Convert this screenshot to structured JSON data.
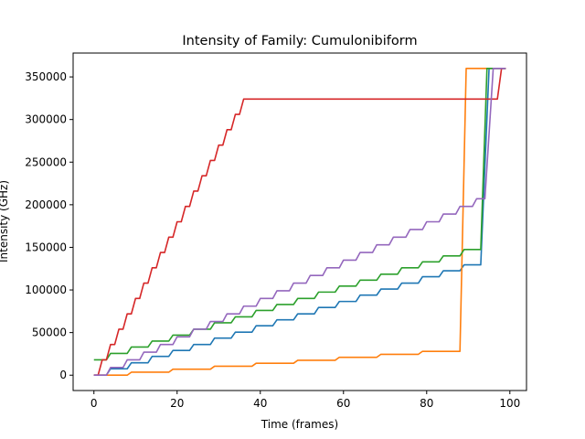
{
  "chart_data": {
    "type": "line",
    "title": "Intensity of Family: Cumulonibiform",
    "xlabel": "Time (frames)",
    "ylabel": "Intensity (GHz)",
    "xlim": [
      -5,
      104
    ],
    "ylim": [
      -18000,
      378000
    ],
    "xticks": [
      0,
      20,
      40,
      60,
      80,
      100
    ],
    "yticks": [
      0,
      50000,
      100000,
      150000,
      200000,
      250000,
      300000,
      350000
    ],
    "grid": false,
    "legend": "none",
    "series": [
      {
        "color": "#1f77b4",
        "points": [
          [
            0,
            0
          ],
          [
            3,
            0
          ],
          [
            4,
            7500
          ],
          [
            8,
            7500
          ],
          [
            9,
            14500
          ],
          [
            13,
            14500
          ],
          [
            14,
            22000
          ],
          [
            18,
            22000
          ],
          [
            19,
            29000
          ],
          [
            23,
            29000
          ],
          [
            24,
            36000
          ],
          [
            28,
            36000
          ],
          [
            29,
            43500
          ],
          [
            33,
            43500
          ],
          [
            34,
            50500
          ],
          [
            38,
            50500
          ],
          [
            39,
            58000
          ],
          [
            43,
            58000
          ],
          [
            44,
            65000
          ],
          [
            48,
            65000
          ],
          [
            49,
            72000
          ],
          [
            53,
            72000
          ],
          [
            54,
            79500
          ],
          [
            58,
            79500
          ],
          [
            59,
            86500
          ],
          [
            63,
            86500
          ],
          [
            64,
            94000
          ],
          [
            68,
            94000
          ],
          [
            69,
            101000
          ],
          [
            73,
            101000
          ],
          [
            74,
            108000
          ],
          [
            78,
            108000
          ],
          [
            79,
            115500
          ],
          [
            83,
            115500
          ],
          [
            84,
            122500
          ],
          [
            88,
            122500
          ],
          [
            89,
            129500
          ],
          [
            93,
            129500
          ],
          [
            95,
            360000
          ],
          [
            99,
            360000
          ]
        ]
      },
      {
        "color": "#ff7f0e",
        "points": [
          [
            0,
            0
          ],
          [
            8,
            0
          ],
          [
            9,
            3500
          ],
          [
            18,
            3500
          ],
          [
            19,
            7000
          ],
          [
            28,
            7000
          ],
          [
            29,
            10500
          ],
          [
            38,
            10500
          ],
          [
            39,
            14000
          ],
          [
            48,
            14000
          ],
          [
            49,
            17500
          ],
          [
            58,
            17500
          ],
          [
            59,
            21000
          ],
          [
            68,
            21000
          ],
          [
            69,
            24500
          ],
          [
            78,
            24500
          ],
          [
            79,
            28000
          ],
          [
            88,
            28000
          ],
          [
            89.5,
            360000
          ],
          [
            99,
            360000
          ]
        ]
      },
      {
        "color": "#2ca02c",
        "points": [
          [
            0,
            18000
          ],
          [
            3,
            18000
          ],
          [
            4,
            25500
          ],
          [
            8,
            25500
          ],
          [
            9,
            33000
          ],
          [
            13,
            33000
          ],
          [
            14,
            40000
          ],
          [
            18,
            40000
          ],
          [
            19,
            47000
          ],
          [
            23,
            47000
          ],
          [
            24,
            54000
          ],
          [
            28,
            54000
          ],
          [
            29,
            61500
          ],
          [
            33,
            61500
          ],
          [
            34,
            68500
          ],
          [
            38,
            68500
          ],
          [
            39,
            76000
          ],
          [
            43,
            76000
          ],
          [
            44,
            83000
          ],
          [
            48,
            83000
          ],
          [
            49,
            90000
          ],
          [
            53,
            90000
          ],
          [
            54,
            97500
          ],
          [
            58,
            97500
          ],
          [
            59,
            104500
          ],
          [
            63,
            104500
          ],
          [
            64,
            111500
          ],
          [
            68,
            111500
          ],
          [
            69,
            118500
          ],
          [
            73,
            118500
          ],
          [
            74,
            126000
          ],
          [
            78,
            126000
          ],
          [
            79,
            133000
          ],
          [
            83,
            133000
          ],
          [
            84,
            140000
          ],
          [
            88,
            140000
          ],
          [
            89,
            147500
          ],
          [
            93,
            147500
          ],
          [
            94.5,
            360000
          ],
          [
            99,
            360000
          ]
        ]
      },
      {
        "color": "#d62728",
        "points": [
          [
            0,
            0
          ],
          [
            1,
            0
          ],
          [
            2,
            18000
          ],
          [
            3,
            18000
          ],
          [
            4,
            36000
          ],
          [
            5,
            36000
          ],
          [
            6,
            54000
          ],
          [
            7,
            54000
          ],
          [
            8,
            72000
          ],
          [
            9,
            72000
          ],
          [
            10,
            90000
          ],
          [
            11,
            90000
          ],
          [
            12,
            108000
          ],
          [
            13,
            108000
          ],
          [
            14,
            126000
          ],
          [
            15,
            126000
          ],
          [
            16,
            144000
          ],
          [
            17,
            144000
          ],
          [
            18,
            162000
          ],
          [
            19,
            162000
          ],
          [
            20,
            180000
          ],
          [
            21,
            180000
          ],
          [
            22,
            198000
          ],
          [
            23,
            198000
          ],
          [
            24,
            216000
          ],
          [
            25,
            216000
          ],
          [
            26,
            234000
          ],
          [
            27,
            234000
          ],
          [
            28,
            252000
          ],
          [
            29,
            252000
          ],
          [
            30,
            270000
          ],
          [
            31,
            270000
          ],
          [
            32,
            288000
          ],
          [
            33,
            288000
          ],
          [
            34,
            306000
          ],
          [
            35,
            306000
          ],
          [
            36,
            324000
          ],
          [
            97,
            324000
          ],
          [
            98,
            360000
          ],
          [
            99,
            360000
          ]
        ]
      },
      {
        "color": "#9467bd",
        "points": [
          [
            0,
            0
          ],
          [
            3,
            0
          ],
          [
            4,
            9000
          ],
          [
            7,
            9000
          ],
          [
            8,
            18000
          ],
          [
            11,
            18000
          ],
          [
            12,
            27000
          ],
          [
            15,
            27000
          ],
          [
            16,
            36000
          ],
          [
            19,
            36000
          ],
          [
            20,
            45000
          ],
          [
            23,
            45000
          ],
          [
            24,
            54000
          ],
          [
            27,
            54000
          ],
          [
            28,
            63000
          ],
          [
            31,
            63000
          ],
          [
            32,
            72000
          ],
          [
            35,
            72000
          ],
          [
            36,
            81000
          ],
          [
            39,
            81000
          ],
          [
            40,
            90000
          ],
          [
            43,
            90000
          ],
          [
            44,
            99000
          ],
          [
            47,
            99000
          ],
          [
            48,
            108000
          ],
          [
            51,
            108000
          ],
          [
            52,
            117000
          ],
          [
            55,
            117000
          ],
          [
            56,
            126000
          ],
          [
            59,
            126000
          ],
          [
            60,
            135000
          ],
          [
            63,
            135000
          ],
          [
            64,
            144000
          ],
          [
            67,
            144000
          ],
          [
            68,
            153000
          ],
          [
            71,
            153000
          ],
          [
            72,
            162000
          ],
          [
            75,
            162000
          ],
          [
            76,
            171000
          ],
          [
            79,
            171000
          ],
          [
            80,
            180000
          ],
          [
            83,
            180000
          ],
          [
            84,
            189000
          ],
          [
            87,
            189000
          ],
          [
            88,
            198000
          ],
          [
            91,
            198000
          ],
          [
            92,
            207000
          ],
          [
            94,
            207000
          ],
          [
            96,
            360000
          ],
          [
            99,
            360000
          ]
        ]
      }
    ]
  }
}
